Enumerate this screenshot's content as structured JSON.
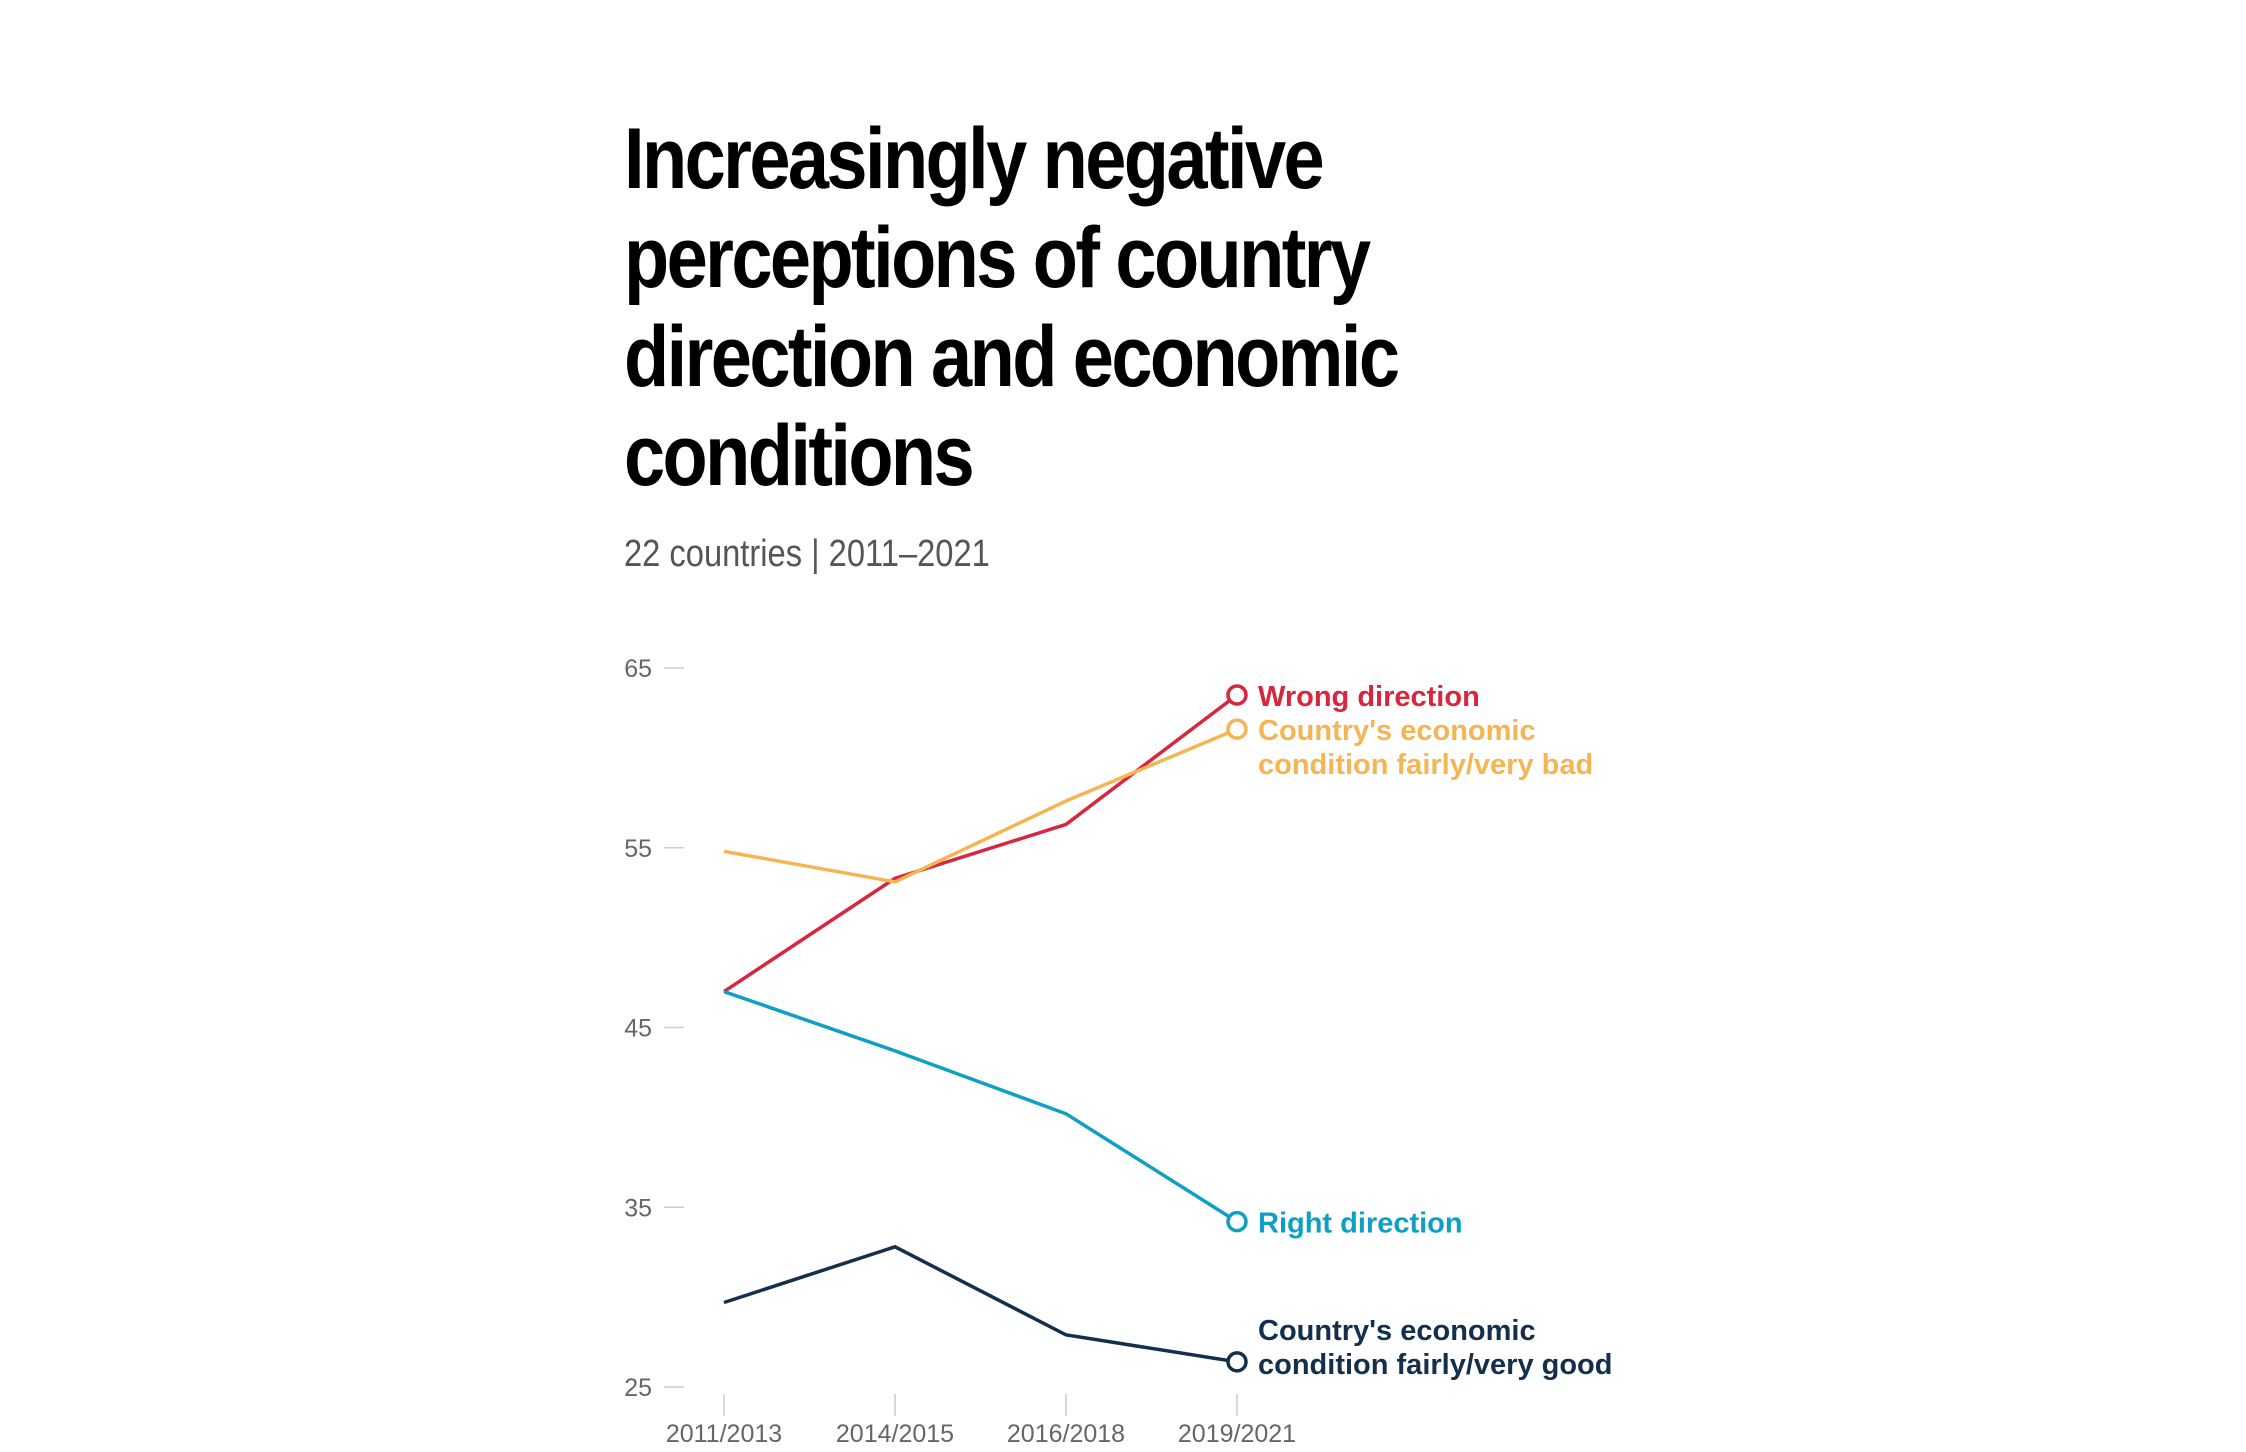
{
  "title": "Increasingly negative perceptions of country direction and economic conditions",
  "subtitle": "22 countries | 2011–2021",
  "chart_data": {
    "type": "line",
    "title": "Increasingly negative perceptions of country direction and economic conditions",
    "subtitle": "22 countries | 2011–2021",
    "x": [
      "2011/2013",
      "2014/2015",
      "2016/2018",
      "2019/2021"
    ],
    "ylim": [
      25,
      65
    ],
    "yticks": [
      25,
      35,
      45,
      55,
      65
    ],
    "xlabel": "",
    "ylabel": "",
    "grid": false,
    "legend": "direct labels at line ends",
    "series": [
      {
        "name": "Wrong direction",
        "label_lines": [
          "Wrong direction"
        ],
        "values": [
          47,
          53.3,
          56.3,
          63.5
        ],
        "color": "#d7263d"
      },
      {
        "name": "Country's economic condition fairly/very bad",
        "label_lines": [
          "Country's economic",
          "condition fairly/very bad"
        ],
        "values": [
          54.8,
          53.1,
          57.6,
          61.6
        ],
        "color": "#f5b553"
      },
      {
        "name": "Right direction",
        "label_lines": [
          "Right direction"
        ],
        "values": [
          47,
          43.7,
          40.2,
          34.2
        ],
        "color": "#0ea0c4"
      },
      {
        "name": "Country's economic condition fairly/very good",
        "label_lines": [
          "Country's economic",
          "condition fairly/very good"
        ],
        "values": [
          29.7,
          32.8,
          27.9,
          26.4
        ],
        "color": "#132f4c"
      }
    ]
  }
}
